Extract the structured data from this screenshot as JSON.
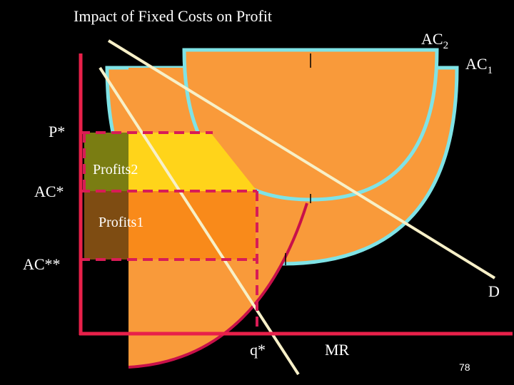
{
  "title": "Impact of Fixed Costs on Profit",
  "labels": {
    "ac2_main": "AC",
    "ac2_sub": "2",
    "ac1_main": "AC",
    "ac1_sub": "1",
    "p_star": "P*",
    "ac_star": "AC*",
    "ac_star_star": "AC**",
    "profits2": "Profits2",
    "profits1": "Profits1",
    "demand": "D",
    "marginal_revenue": "MR",
    "quantity": "q*"
  },
  "page_number": "78",
  "colors": {
    "background": "#000000",
    "axes": "#e8204a",
    "ac_curves_outline": "#7fe3e6",
    "ac_fill": "#f99a3a",
    "mr_curve": "#c8104a",
    "demand_line": "#f7f0c8",
    "dashed_lines": "#d81c56",
    "profits2_region": "#ffd41a",
    "profits2_dark": "#7a7d12",
    "profits1_region": "#f98a1a",
    "profits1_dark": "#7e4c12"
  }
}
